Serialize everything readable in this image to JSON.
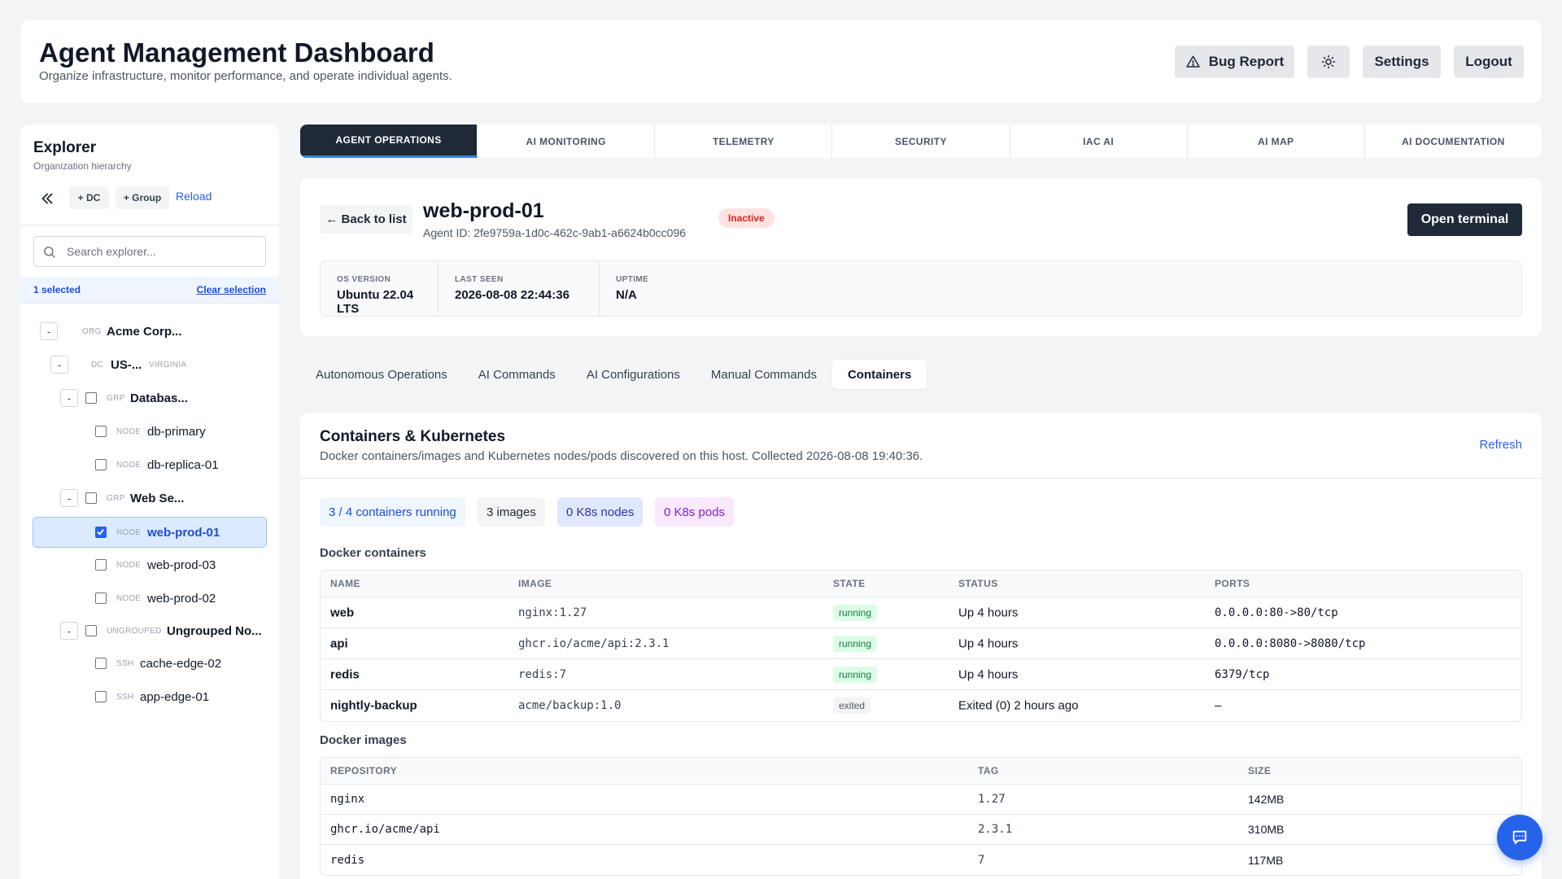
{
  "header": {
    "title": "Agent Management Dashboard",
    "subtitle": "Organize infrastructure, monitor performance, and operate individual agents.",
    "bug_report": "Bug Report",
    "settings": "Settings",
    "logout": "Logout"
  },
  "sidebar": {
    "title": "Explorer",
    "subtitle": "Organization hierarchy",
    "add_dc": "+ DC",
    "add_group": "+ Group",
    "reload": "Reload",
    "search_placeholder": "Search explorer...",
    "selected_count": "1 selected",
    "clear_selection": "Clear selection",
    "tree": [
      {
        "toggle": "-",
        "kind": "ORG",
        "name": "Acme Corp..."
      },
      {
        "toggle": "-",
        "kind": "DC",
        "name": "US-...",
        "region": "VIRGINIA"
      },
      {
        "toggle": "-",
        "kind": "GRP",
        "name": "Databas..."
      },
      {
        "kind": "NODE",
        "name": "db-primary"
      },
      {
        "kind": "NODE",
        "name": "db-replica-01"
      },
      {
        "toggle": "-",
        "kind": "GRP",
        "name": "Web Se..."
      },
      {
        "kind": "NODE",
        "name": "web-prod-01"
      },
      {
        "kind": "NODE",
        "name": "web-prod-03"
      },
      {
        "kind": "NODE",
        "name": "web-prod-02"
      },
      {
        "toggle": "-",
        "kind": "UNGROUPED",
        "name": "Ungrouped No..."
      },
      {
        "kind": "SSH",
        "name": "cache-edge-02"
      },
      {
        "kind": "SSH",
        "name": "app-edge-01"
      }
    ]
  },
  "top_tabs": [
    "AGENT OPERATIONS",
    "AI MONITORING",
    "TELEMETRY",
    "SECURITY",
    "IAC AI",
    "AI MAP",
    "AI DOCUMENTATION"
  ],
  "agent": {
    "back": "← Back to list",
    "name": "web-prod-01",
    "id": "Agent ID: 2fe9759a-1d0c-462c-9ab1-a6624b0cc096",
    "status": "Inactive",
    "open_terminal": "Open terminal",
    "stats": [
      {
        "label": "OS VERSION",
        "value": "Ubuntu 22.04 LTS"
      },
      {
        "label": "LAST SEEN",
        "value": "2026-08-08 22:44:36"
      },
      {
        "label": "UPTIME",
        "value": "N/A"
      }
    ]
  },
  "sub_tabs": [
    "Autonomous Operations",
    "AI Commands",
    "AI Configurations",
    "Manual Commands",
    "Containers"
  ],
  "containers": {
    "title": "Containers & Kubernetes",
    "description": "Docker containers/images and Kubernetes nodes/pods discovered on this host. Collected 2026-08-08 19:40:36.",
    "refresh": "Refresh",
    "pills": [
      "3 / 4 containers running",
      "3 images",
      "0 K8s nodes",
      "0 K8s pods"
    ],
    "docker_containers_label": "Docker containers",
    "containers_headers": [
      "NAME",
      "IMAGE",
      "STATE",
      "STATUS",
      "PORTS"
    ],
    "containers_rows": [
      {
        "name": "web",
        "image": "nginx:1.27",
        "state": "running",
        "status": "Up 4 hours",
        "ports": "0.0.0.0:80->80/tcp"
      },
      {
        "name": "api",
        "image": "ghcr.io/acme/api:2.3.1",
        "state": "running",
        "status": "Up 4 hours",
        "ports": "0.0.0.0:8080->8080/tcp"
      },
      {
        "name": "redis",
        "image": "redis:7",
        "state": "running",
        "status": "Up 4 hours",
        "ports": "6379/tcp"
      },
      {
        "name": "nightly-backup",
        "image": "acme/backup:1.0",
        "state": "exited",
        "status": "Exited (0) 2 hours ago",
        "ports": "–"
      }
    ],
    "docker_images_label": "Docker images",
    "images_headers": [
      "REPOSITORY",
      "TAG",
      "SIZE"
    ],
    "images_rows": [
      {
        "repo": "nginx",
        "tag": "1.27",
        "size": "142MB"
      },
      {
        "repo": "ghcr.io/acme/api",
        "tag": "2.3.1",
        "size": "310MB"
      },
      {
        "repo": "redis",
        "tag": "7",
        "size": "117MB"
      }
    ]
  },
  "colors": {
    "accent": "#2563eb",
    "dark": "#1f2937",
    "running_bg": "#dcfce7",
    "inactive": "#dc2626"
  }
}
